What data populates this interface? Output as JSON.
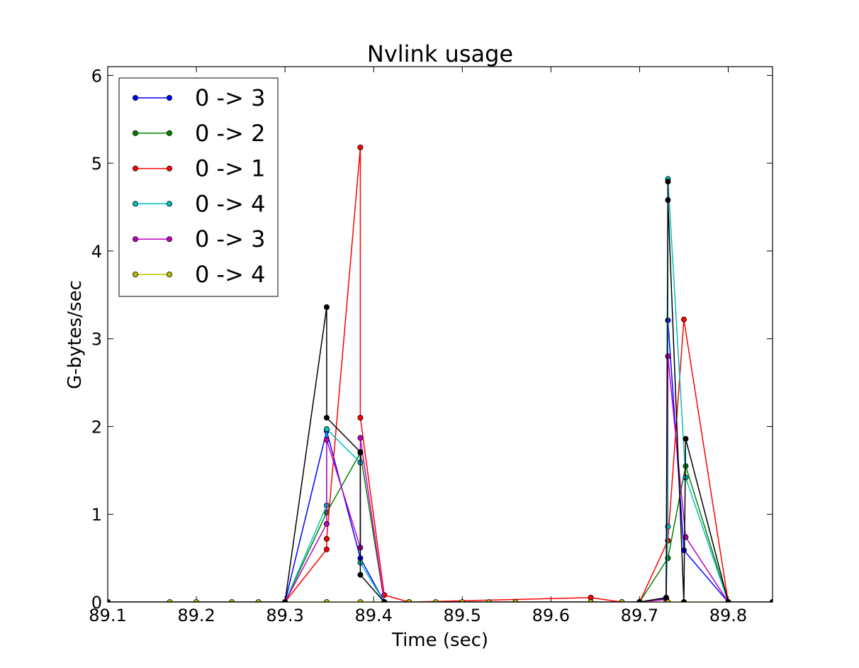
{
  "chart_data": {
    "type": "line",
    "title": "Nvlink usage",
    "xlabel": "Time (sec)",
    "ylabel": "G-bytes/sec",
    "xlim": [
      89.1,
      89.85
    ],
    "ylim": [
      0,
      6.1
    ],
    "xticks": [
      89.1,
      89.2,
      89.3,
      89.4,
      89.5,
      89.6,
      89.7,
      89.8
    ],
    "xtick_labels": [
      "89.1",
      "89.2",
      "89.3",
      "89.4",
      "89.5",
      "89.6",
      "89.7",
      "89.8"
    ],
    "yticks": [
      0,
      1,
      2,
      3,
      4,
      5,
      6
    ],
    "ytick_labels": [
      "0",
      "1",
      "2",
      "3",
      "4",
      "5",
      "6"
    ],
    "grid": false,
    "legend_position": "top-left",
    "series": [
      {
        "name": "0 -> 3",
        "color": "#0000ff",
        "points": [
          [
            89.1,
            0
          ],
          [
            89.3,
            0
          ],
          [
            89.347,
            1.95
          ],
          [
            89.385,
            0.5
          ],
          [
            89.412,
            0
          ],
          [
            89.7,
            0
          ],
          [
            89.73,
            0.04
          ],
          [
            89.732,
            3.21
          ],
          [
            89.75,
            0.59
          ],
          [
            89.8,
            0
          ],
          [
            89.85,
            0
          ]
        ]
      },
      {
        "name": "0 -> 2",
        "color": "#008000",
        "points": [
          [
            89.1,
            0
          ],
          [
            89.3,
            0
          ],
          [
            89.347,
            1.02
          ],
          [
            89.385,
            1.7
          ],
          [
            89.412,
            0
          ],
          [
            89.7,
            0
          ],
          [
            89.732,
            0.5
          ],
          [
            89.752,
            1.55
          ],
          [
            89.8,
            0
          ],
          [
            89.85,
            0
          ]
        ]
      },
      {
        "name": "0 -> 1",
        "color": "#ff0000",
        "points": [
          [
            89.1,
            0
          ],
          [
            89.3,
            0
          ],
          [
            89.347,
            0.6
          ],
          [
            89.347,
            0.72
          ],
          [
            89.385,
            5.18
          ],
          [
            89.385,
            2.1
          ],
          [
            89.412,
            0.08
          ],
          [
            89.44,
            0
          ],
          [
            89.645,
            0.05
          ],
          [
            89.68,
            0
          ],
          [
            89.7,
            0
          ],
          [
            89.732,
            0.7
          ],
          [
            89.75,
            3.22
          ],
          [
            89.8,
            0
          ],
          [
            89.85,
            0
          ]
        ]
      },
      {
        "name": "0 -> 4",
        "color": "#00bfbf",
        "points": [
          [
            89.1,
            0
          ],
          [
            89.3,
            0
          ],
          [
            89.347,
            1.1
          ],
          [
            89.347,
            1.97
          ],
          [
            89.385,
            1.59
          ],
          [
            89.385,
            0.45
          ],
          [
            89.412,
            0
          ],
          [
            89.7,
            0
          ],
          [
            89.73,
            0.05
          ],
          [
            89.732,
            0.86
          ],
          [
            89.732,
            4.82
          ],
          [
            89.752,
            1.42
          ],
          [
            89.8,
            0
          ],
          [
            89.85,
            0
          ]
        ]
      },
      {
        "name": "0 -> 3",
        "color": "#bf00bf",
        "points": [
          [
            89.1,
            0
          ],
          [
            89.3,
            0
          ],
          [
            89.347,
            0.89
          ],
          [
            89.347,
            1.85
          ],
          [
            89.385,
            0.62
          ],
          [
            89.385,
            1.87
          ],
          [
            89.412,
            0
          ],
          [
            89.7,
            0
          ],
          [
            89.73,
            0.03
          ],
          [
            89.732,
            2.8
          ],
          [
            89.752,
            0.74
          ],
          [
            89.8,
            0
          ],
          [
            89.85,
            0
          ]
        ]
      },
      {
        "name": "0 -> 4",
        "color": "#bfbf00",
        "points": [
          [
            89.1,
            0
          ],
          [
            89.17,
            0
          ],
          [
            89.2,
            0
          ],
          [
            89.24,
            0
          ],
          [
            89.27,
            0
          ],
          [
            89.3,
            0
          ],
          [
            89.347,
            0
          ],
          [
            89.385,
            0
          ],
          [
            89.412,
            0
          ],
          [
            89.44,
            0
          ],
          [
            89.47,
            0
          ],
          [
            89.5,
            0
          ],
          [
            89.53,
            0
          ],
          [
            89.56,
            0
          ],
          [
            89.645,
            0
          ],
          [
            89.68,
            0
          ],
          [
            89.7,
            0
          ],
          [
            89.732,
            0
          ],
          [
            89.75,
            0
          ],
          [
            89.8,
            0
          ],
          [
            89.85,
            0
          ]
        ]
      },
      {
        "color": "#000000",
        "points": [
          [
            89.1,
            0
          ],
          [
            89.3,
            0
          ],
          [
            89.347,
            3.36
          ],
          [
            89.347,
            2.1
          ],
          [
            89.385,
            1.71
          ],
          [
            89.385,
            0.31
          ],
          [
            89.412,
            0
          ],
          [
            89.7,
            0
          ],
          [
            89.73,
            0.05
          ],
          [
            89.732,
            4.79
          ],
          [
            89.732,
            4.58
          ],
          [
            89.75,
            0
          ],
          [
            89.752,
            1.86
          ],
          [
            89.8,
            0
          ],
          [
            89.85,
            0
          ]
        ]
      }
    ]
  }
}
